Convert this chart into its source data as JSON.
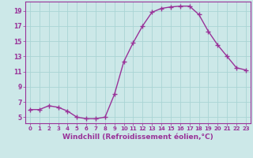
{
  "x": [
    0,
    1,
    2,
    3,
    4,
    5,
    6,
    7,
    8,
    9,
    10,
    11,
    12,
    13,
    14,
    15,
    16,
    17,
    18,
    19,
    20,
    21,
    22,
    23
  ],
  "y": [
    6.0,
    6.0,
    6.5,
    6.3,
    5.8,
    5.0,
    4.8,
    4.8,
    5.0,
    8.0,
    12.3,
    14.8,
    17.0,
    18.8,
    19.3,
    19.5,
    19.6,
    19.6,
    18.5,
    16.3,
    14.5,
    13.0,
    11.5,
    11.2
  ],
  "line_color": "#993399",
  "marker": "+",
  "marker_size": 4,
  "bg_color": "#cce8e8",
  "grid_color": "#aad4d4",
  "xlabel": "Windchill (Refroidissement éolien,°C)",
  "xlabel_fontsize": 6.5,
  "xtick_labels": [
    "0",
    "1",
    "2",
    "3",
    "4",
    "5",
    "6",
    "7",
    "8",
    "9",
    "10",
    "11",
    "12",
    "13",
    "14",
    "15",
    "16",
    "17",
    "18",
    "19",
    "20",
    "21",
    "22",
    "23"
  ],
  "ytick_values": [
    5,
    7,
    9,
    11,
    13,
    15,
    17,
    19
  ],
  "xlim": [
    -0.5,
    23.5
  ],
  "ylim": [
    4.2,
    20.2
  ],
  "line_width": 1.0
}
